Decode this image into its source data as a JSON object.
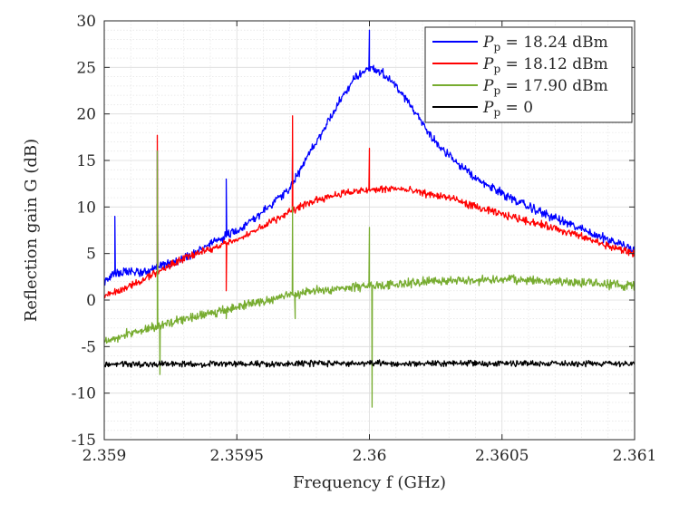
{
  "chart_data": {
    "type": "line",
    "title": "",
    "xlabel": "Frequency f (GHz)",
    "ylabel": "Reflection gain G (dB)",
    "xlim": [
      2.359,
      2.361
    ],
    "ylim": [
      -15,
      30
    ],
    "xticks": [
      2.359,
      2.3595,
      2.36,
      2.3605,
      2.361
    ],
    "xtick_labels": [
      "2.359",
      "2.3595",
      "2.36",
      "2.3605",
      "2.361"
    ],
    "yticks": [
      -15,
      -10,
      -5,
      0,
      5,
      10,
      15,
      20,
      25,
      30
    ],
    "ytick_labels": [
      "-15",
      "-10",
      "-5",
      "0",
      "5",
      "10",
      "15",
      "20",
      "25",
      "30"
    ],
    "grid": "major and minor",
    "legend_position": "top-right",
    "series": [
      {
        "name": "P_p = 18.24 dBm",
        "legend_label": "Pp = 18.24 dBm",
        "color": "#0000ff",
        "noise_db": 0.3,
        "x": [
          2.359,
          2.35905,
          2.3591,
          2.35915,
          2.3592,
          2.3593,
          2.3594,
          2.3595,
          2.3596,
          2.3597,
          2.35975,
          2.3598,
          2.35985,
          2.3599,
          2.35995,
          2.36,
          2.36005,
          2.3601,
          2.36015,
          2.3602,
          2.36025,
          2.3603,
          2.3604,
          2.3605,
          2.3606,
          2.3607,
          2.3608,
          2.3609,
          2.361
        ],
        "y": [
          2.0,
          3.0,
          3.0,
          3.0,
          3.5,
          4.5,
          6.0,
          7.5,
          9.5,
          12.0,
          14.5,
          17.0,
          19.5,
          22.0,
          24.0,
          25.0,
          24.5,
          23.0,
          21.0,
          19.0,
          17.0,
          15.5,
          13.0,
          11.5,
          10.0,
          8.8,
          7.6,
          6.5,
          5.5
        ],
        "spikes": [
          {
            "x": 2.35904,
            "y": 9.0
          },
          {
            "x": 2.3592,
            "y": 16.0
          },
          {
            "x": 2.35946,
            "y": 13.0
          },
          {
            "x": 2.35971,
            "y": 16.0
          },
          {
            "x": 2.36,
            "y": 29.0
          }
        ]
      },
      {
        "name": "P_p = 18.12 dBm",
        "legend_label": "Pp = 18.12 dBm",
        "color": "#ff0000",
        "noise_db": 0.25,
        "x": [
          2.359,
          2.3591,
          2.3592,
          2.3593,
          2.3594,
          2.3595,
          2.3596,
          2.3597,
          2.3598,
          2.3599,
          2.36,
          2.3601,
          2.3602,
          2.3603,
          2.3604,
          2.3605,
          2.3606,
          2.3607,
          2.3608,
          2.3609,
          2.361
        ],
        "y": [
          0.5,
          1.5,
          3.0,
          4.5,
          5.5,
          6.5,
          8.0,
          9.5,
          10.8,
          11.5,
          11.8,
          12.0,
          11.5,
          11.0,
          10.0,
          9.2,
          8.5,
          7.7,
          6.8,
          5.8,
          5.0
        ],
        "spikes": [
          {
            "x": 2.3592,
            "y": 17.7
          },
          {
            "x": 2.35946,
            "y": 1.0
          },
          {
            "x": 2.35971,
            "y": 19.8
          },
          {
            "x": 2.36,
            "y": 16.3
          }
        ]
      },
      {
        "name": "P_p = 17.90 dBm",
        "legend_label": "Pp = 17.90 dBm",
        "color": "#77ac30",
        "noise_db": 0.3,
        "x": [
          2.359,
          2.3591,
          2.3592,
          2.3593,
          2.3594,
          2.3595,
          2.3596,
          2.3597,
          2.3598,
          2.3599,
          2.36,
          2.3601,
          2.3602,
          2.3603,
          2.3604,
          2.3605,
          2.3606,
          2.3607,
          2.3608,
          2.3609,
          2.361
        ],
        "y": [
          -4.5,
          -3.5,
          -2.8,
          -2.0,
          -1.5,
          -0.8,
          0.0,
          0.5,
          1.0,
          1.3,
          1.5,
          1.7,
          2.0,
          2.1,
          2.1,
          2.2,
          2.1,
          2.0,
          1.9,
          1.7,
          1.5
        ],
        "spikes": [
          {
            "x": 2.3592,
            "y": 16.0
          },
          {
            "x": 2.35921,
            "y": -8.0
          },
          {
            "x": 2.35946,
            "y": -2.0
          },
          {
            "x": 2.35971,
            "y": 10.0
          },
          {
            "x": 2.35972,
            "y": -2.0
          },
          {
            "x": 2.36,
            "y": 7.8
          },
          {
            "x": 2.36001,
            "y": -11.5
          }
        ]
      },
      {
        "name": "P_p = 0",
        "legend_label": "Pp = 0",
        "color": "#000000",
        "noise_db": 0.2,
        "x": [
          2.359,
          2.3595,
          2.36,
          2.3605,
          2.361
        ],
        "y": [
          -6.9,
          -6.85,
          -6.8,
          -6.8,
          -6.8
        ],
        "spikes": []
      }
    ]
  }
}
